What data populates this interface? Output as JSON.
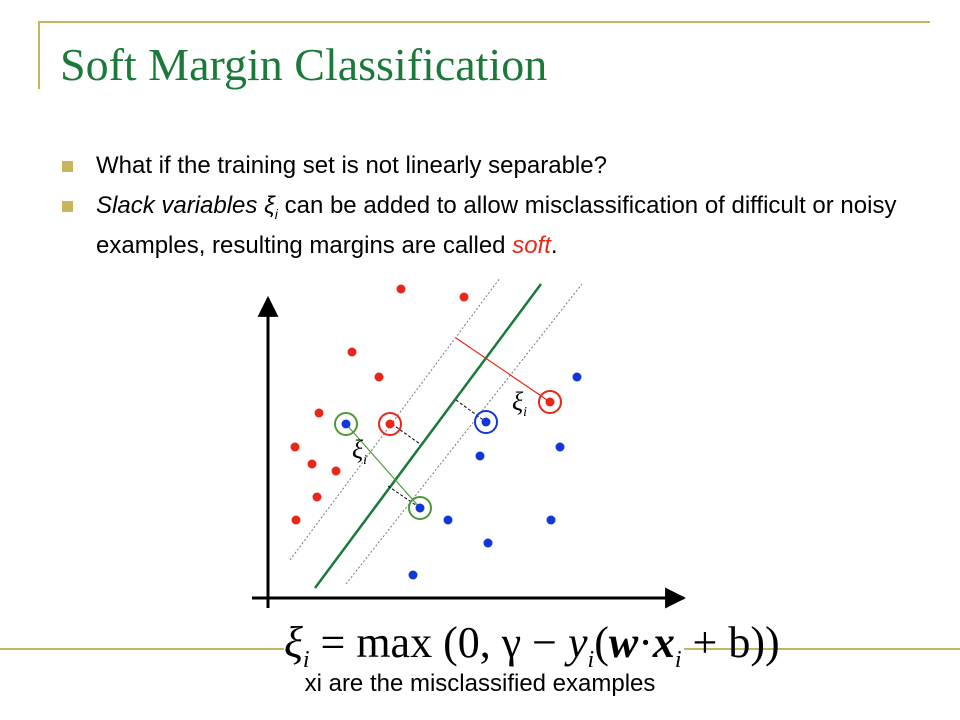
{
  "slide": {
    "title": "Soft Margin Classification",
    "bullet1": "What if the training set is not linearly separable?",
    "bullet2": {
      "part1": "Slack variables ξ",
      "sub": "i",
      "part2": " can be added to allow misclassification of difficult or noisy examples, resulting margins are called ",
      "soft": "soft",
      "end": "."
    },
    "xi_label": "ξ",
    "xi_sub": "i",
    "formula": {
      "lhs": "ξ",
      "lhs_sub": "i",
      "eq": " = max (0, γ − ",
      "y": "y",
      "y_sub": "i",
      "paren": "(",
      "w": "w",
      "dot": "·",
      "x": "x",
      "x_sub": "i",
      "tail": " + b))"
    },
    "caption": "xi are the misclassified examples"
  },
  "colors": {
    "red": "#e8261a",
    "blue": "#1038d8",
    "green": "#1a7a3a",
    "circle_green": "#4a9a3a",
    "frame": "#c8b45a",
    "title": "#1b7a3a"
  }
}
